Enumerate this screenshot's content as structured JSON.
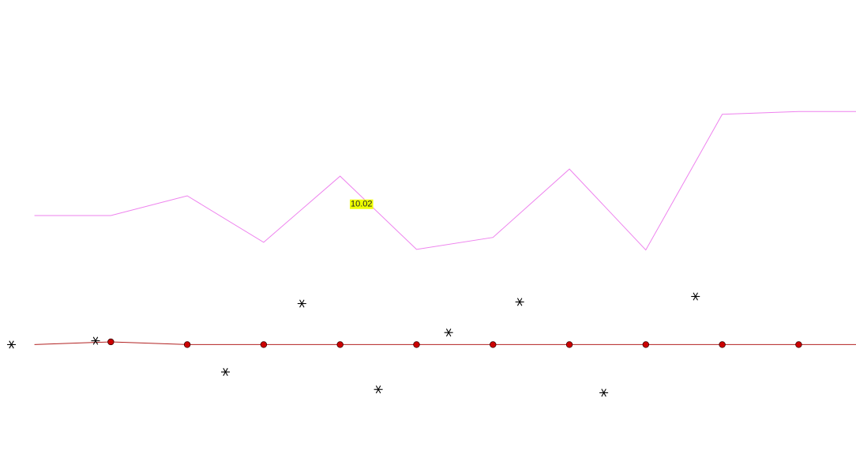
{
  "chart_data": {
    "type": "line",
    "title": "",
    "xlabel": "",
    "ylabel": "",
    "x": [
      1,
      2,
      3,
      4,
      5,
      6,
      7,
      8,
      9,
      10,
      11,
      12
    ],
    "series": [
      {
        "kind": "line",
        "color": "#ee82ee",
        "marker": "none",
        "values": [
          9.36,
          9.36,
          9.72,
          8.87,
          10.08,
          8.74,
          8.96,
          10.21,
          8.73,
          11.21,
          11.26,
          11.26
        ]
      },
      {
        "kind": "line",
        "color": "#b22222",
        "marker": "circle",
        "marker_color": "#cc0000",
        "values": [
          7.0,
          7.05,
          7.0,
          7.0,
          7.0,
          7.0,
          7.0,
          7.0,
          7.0,
          7.0,
          7.0,
          7.0
        ],
        "marker_indices": [
          1,
          2,
          3,
          4,
          5,
          6,
          7,
          8,
          9,
          10
        ]
      },
      {
        "kind": "scatter",
        "color": "#000000",
        "marker": "asterisk",
        "points": [
          {
            "x": 0.7,
            "y": 7.0
          },
          {
            "x": 1.8,
            "y": 7.07
          },
          {
            "x": 3.5,
            "y": 6.5
          },
          {
            "x": 4.5,
            "y": 7.75
          },
          {
            "x": 5.5,
            "y": 6.18
          },
          {
            "x": 6.42,
            "y": 7.22
          },
          {
            "x": 7.35,
            "y": 7.78
          },
          {
            "x": 8.45,
            "y": 6.12
          },
          {
            "x": 9.65,
            "y": 7.88
          }
        ]
      }
    ],
    "annotations": [
      {
        "text": "10.02",
        "x": 5.28,
        "y": 9.58
      }
    ],
    "xlim": [
      0.55,
      11.75
    ],
    "ylim": [
      5.0,
      13.3
    ],
    "grid": false,
    "legend": "none"
  }
}
